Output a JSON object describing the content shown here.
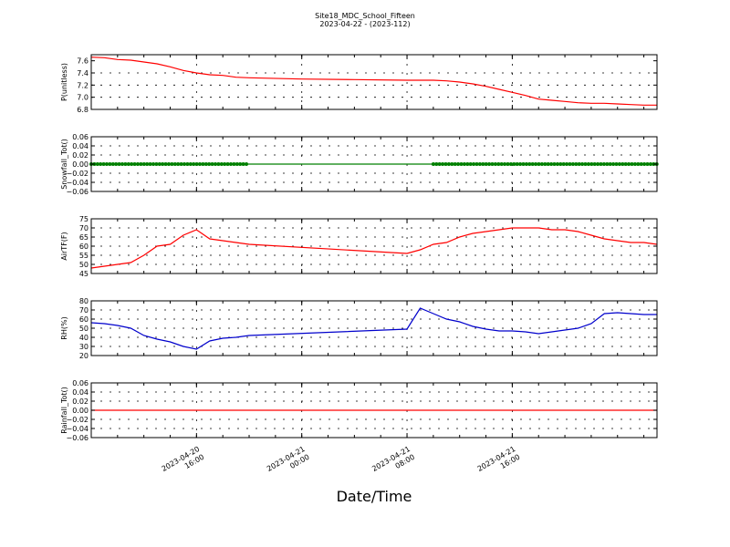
{
  "figure": {
    "title": "Site18_MDC_School_Fifteen",
    "subtitle": "2023-04-22 - (2023-112)",
    "xlabel": "Date/Time"
  },
  "chart_data": [
    {
      "type": "line",
      "ylabel": "P(unitless)",
      "ylim": [
        6.8,
        7.7
      ],
      "yticks": [
        "6.8",
        "7.0",
        "7.2",
        "7.4",
        "7.6"
      ],
      "ytick_values": [
        6.8,
        7.0,
        7.2,
        7.4,
        7.6
      ],
      "color": "#ff0000",
      "marker": false,
      "xlim": [
        "2023-04-20 08:00",
        "2023-04-22 03:00"
      ],
      "x": [
        "2023-04-20 08:00",
        "2023-04-20 09:00",
        "2023-04-20 10:00",
        "2023-04-20 11:00",
        "2023-04-20 12:00",
        "2023-04-20 13:00",
        "2023-04-20 14:00",
        "2023-04-20 15:00",
        "2023-04-20 16:00",
        "2023-04-20 17:00",
        "2023-04-20 18:00",
        "2023-04-20 19:00",
        "2023-04-20 20:00",
        "2023-04-21 00:00",
        "2023-04-21 04:00",
        "2023-04-21 08:00",
        "2023-04-21 09:00",
        "2023-04-21 10:00",
        "2023-04-21 11:00",
        "2023-04-21 12:00",
        "2023-04-21 13:00",
        "2023-04-21 14:00",
        "2023-04-21 15:00",
        "2023-04-21 16:00",
        "2023-04-21 17:00",
        "2023-04-21 18:00",
        "2023-04-21 19:00",
        "2023-04-21 20:00",
        "2023-04-21 21:00",
        "2023-04-21 22:00",
        "2023-04-21 23:00",
        "2023-04-22 00:00",
        "2023-04-22 01:00",
        "2023-04-22 02:00",
        "2023-04-22 03:00"
      ],
      "y": [
        7.66,
        7.65,
        7.62,
        7.61,
        7.58,
        7.55,
        7.5,
        7.44,
        7.4,
        7.37,
        7.36,
        7.33,
        7.32,
        7.3,
        7.29,
        7.28,
        7.28,
        7.28,
        7.27,
        7.25,
        7.22,
        7.18,
        7.13,
        7.08,
        7.03,
        6.97,
        6.95,
        6.93,
        6.91,
        6.9,
        6.9,
        6.89,
        6.88,
        6.87,
        6.87
      ]
    },
    {
      "type": "line",
      "ylabel": "Snowfall_Tot()",
      "ylim": [
        -0.06,
        0.06
      ],
      "yticks": [
        "−0.06",
        "−0.04",
        "−0.02",
        "0.00",
        "0.02",
        "0.04",
        "0.06"
      ],
      "ytick_values": [
        -0.06,
        -0.04,
        -0.02,
        0.0,
        0.02,
        0.04,
        0.06
      ],
      "color": "#008000",
      "marker": true,
      "xlim": [
        "2023-04-20 08:00",
        "2023-04-22 03:00"
      ],
      "x": [
        "2023-04-20 08:00",
        "2023-04-22 03:00"
      ],
      "y": [
        0.0,
        0.0
      ],
      "marker_ranges": [
        [
          "2023-04-20 08:00",
          "2023-04-20 20:00"
        ],
        [
          "2023-04-21 10:00",
          "2023-04-22 03:00"
        ]
      ]
    },
    {
      "type": "line",
      "ylabel": "AirTF(F)",
      "ylim": [
        45,
        75
      ],
      "yticks": [
        "45",
        "50",
        "55",
        "60",
        "65",
        "70",
        "75"
      ],
      "ytick_values": [
        45,
        50,
        55,
        60,
        65,
        70,
        75
      ],
      "color": "#ff0000",
      "marker": false,
      "xlim": [
        "2023-04-20 08:00",
        "2023-04-22 03:00"
      ],
      "x": [
        "2023-04-20 08:00",
        "2023-04-20 09:00",
        "2023-04-20 10:00",
        "2023-04-20 11:00",
        "2023-04-20 12:00",
        "2023-04-20 13:00",
        "2023-04-20 14:00",
        "2023-04-20 15:00",
        "2023-04-20 16:00",
        "2023-04-20 17:00",
        "2023-04-20 18:00",
        "2023-04-20 19:00",
        "2023-04-20 20:00",
        "2023-04-21 08:00",
        "2023-04-21 09:00",
        "2023-04-21 10:00",
        "2023-04-21 11:00",
        "2023-04-21 12:00",
        "2023-04-21 13:00",
        "2023-04-21 14:00",
        "2023-04-21 15:00",
        "2023-04-21 16:00",
        "2023-04-21 17:00",
        "2023-04-21 18:00",
        "2023-04-21 19:00",
        "2023-04-21 20:00",
        "2023-04-21 21:00",
        "2023-04-21 22:00",
        "2023-04-21 23:00",
        "2023-04-22 00:00",
        "2023-04-22 01:00",
        "2023-04-22 02:00",
        "2023-04-22 03:00"
      ],
      "y": [
        48,
        49,
        50,
        51,
        55,
        60,
        61,
        66,
        69,
        64,
        63,
        62,
        61,
        56,
        58,
        61,
        62,
        65,
        67,
        68,
        69,
        70,
        70,
        70,
        69,
        69,
        68,
        66,
        64,
        63,
        62,
        62,
        61
      ]
    },
    {
      "type": "line",
      "ylabel": "RH(%)",
      "ylim": [
        20,
        80
      ],
      "yticks": [
        "20",
        "30",
        "40",
        "50",
        "60",
        "70",
        "80"
      ],
      "ytick_values": [
        20,
        30,
        40,
        50,
        60,
        70,
        80
      ],
      "color": "#0000cc",
      "marker": false,
      "xlim": [
        "2023-04-20 08:00",
        "2023-04-22 03:00"
      ],
      "x": [
        "2023-04-20 08:00",
        "2023-04-20 09:00",
        "2023-04-20 10:00",
        "2023-04-20 11:00",
        "2023-04-20 12:00",
        "2023-04-20 13:00",
        "2023-04-20 14:00",
        "2023-04-20 15:00",
        "2023-04-20 16:00",
        "2023-04-20 17:00",
        "2023-04-20 18:00",
        "2023-04-20 19:00",
        "2023-04-20 20:00",
        "2023-04-21 08:00",
        "2023-04-21 09:00",
        "2023-04-21 10:00",
        "2023-04-21 11:00",
        "2023-04-21 12:00",
        "2023-04-21 13:00",
        "2023-04-21 14:00",
        "2023-04-21 15:00",
        "2023-04-21 16:00",
        "2023-04-21 17:00",
        "2023-04-21 18:00",
        "2023-04-21 19:00",
        "2023-04-21 20:00",
        "2023-04-21 21:00",
        "2023-04-21 22:00",
        "2023-04-21 23:00",
        "2023-04-22 00:00",
        "2023-04-22 01:00",
        "2023-04-22 02:00",
        "2023-04-22 03:00"
      ],
      "y": [
        56,
        55,
        53,
        50,
        42,
        38,
        35,
        30,
        27,
        36,
        39,
        40,
        42,
        49,
        72,
        66,
        60,
        57,
        52,
        49,
        47,
        47,
        46,
        44,
        46,
        48,
        50,
        55,
        66,
        67,
        66,
        65,
        65
      ]
    },
    {
      "type": "line",
      "ylabel": "Rainfall_Tot()",
      "ylim": [
        -0.06,
        0.06
      ],
      "yticks": [
        "−0.06",
        "−0.04",
        "−0.02",
        "0.00",
        "0.02",
        "0.04",
        "0.06"
      ],
      "ytick_values": [
        -0.06,
        -0.04,
        -0.02,
        0.0,
        0.02,
        0.04,
        0.06
      ],
      "color": "#ff0000",
      "marker": false,
      "xlim": [
        "2023-04-20 08:00",
        "2023-04-22 03:00"
      ],
      "x": [
        "2023-04-20 08:00",
        "2023-04-22 03:00"
      ],
      "y": [
        0.0,
        0.0
      ]
    }
  ],
  "x_ticks": [
    {
      "line1": "2023-04-20",
      "line2": "16:00",
      "value": "2023-04-20 16:00"
    },
    {
      "line1": "2023-04-21",
      "line2": "00:00",
      "value": "2023-04-21 00:00"
    },
    {
      "line1": "2023-04-21",
      "line2": "08:00",
      "value": "2023-04-21 08:00"
    },
    {
      "line1": "2023-04-21",
      "line2": "16:00",
      "value": "2023-04-21 16:00"
    }
  ]
}
